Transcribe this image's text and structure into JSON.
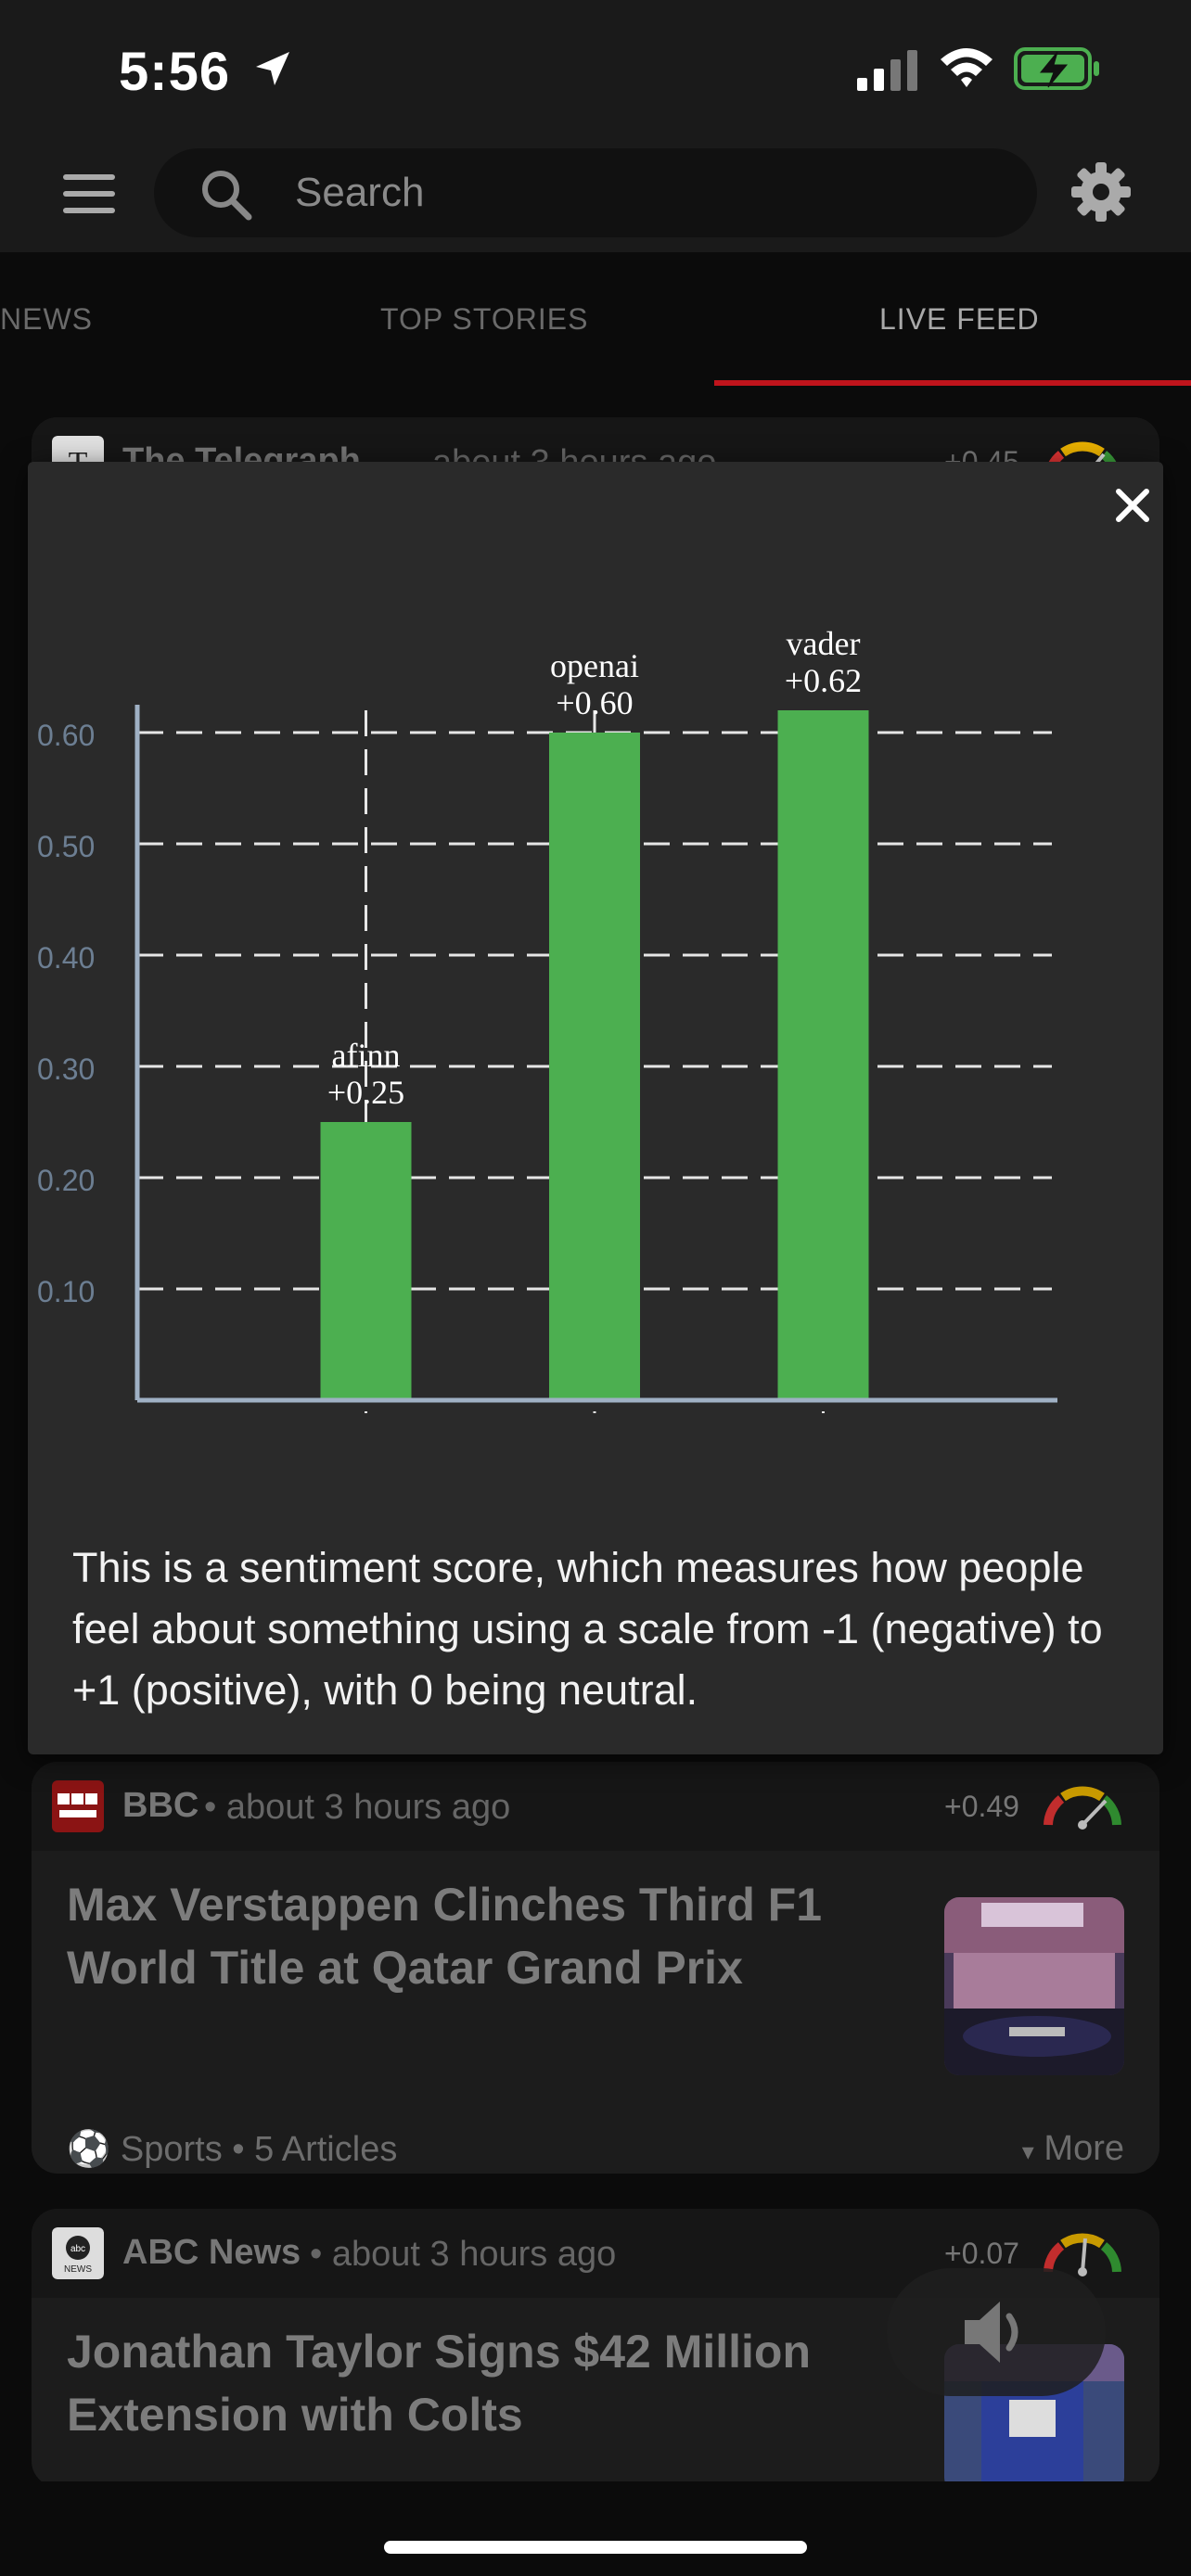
{
  "status_bar": {
    "time": "5:56"
  },
  "header": {
    "search_placeholder": "Search"
  },
  "tabs": [
    {
      "label": "NEWS"
    },
    {
      "label": "TOP STORIES"
    },
    {
      "label": "LIVE FEED",
      "active": true
    }
  ],
  "popup": {
    "explanation": "This is a sentiment score, which measures how people feel about something using a scale from -1 (negative) to +1 (positive), with 0 being neutral."
  },
  "chart_data": {
    "type": "bar",
    "categories": [
      "afinn",
      "openai",
      "vader"
    ],
    "values": [
      0.25,
      0.6,
      0.62
    ],
    "data_labels": [
      "+0.25",
      "+0.60",
      "+0.62"
    ],
    "yticks": [
      "0.10",
      "0.20",
      "0.30",
      "0.40",
      "0.50",
      "0.60"
    ],
    "ylim": [
      0,
      0.62
    ],
    "grid": true,
    "bar_color": "#4caf50"
  },
  "cards": [
    {
      "source": "The Telegraph",
      "time": "about 3 hours ago",
      "score": "+0.45"
    },
    {
      "source": "BBC",
      "time": "about 3 hours ago",
      "score": "+0.49",
      "headline": "Max Verstappen Clinches Third F1 World Title at Qatar Grand Prix",
      "category": "Sports",
      "articles": "5 Articles",
      "more": "More"
    },
    {
      "source": "ABC News",
      "time": "about 3 hours ago",
      "score": "+0.07",
      "headline": "Jonathan Taylor Signs $42 Million Extension with Colts"
    }
  ],
  "colors": {
    "accent": "#c0141c",
    "positive": "#4caf50"
  }
}
